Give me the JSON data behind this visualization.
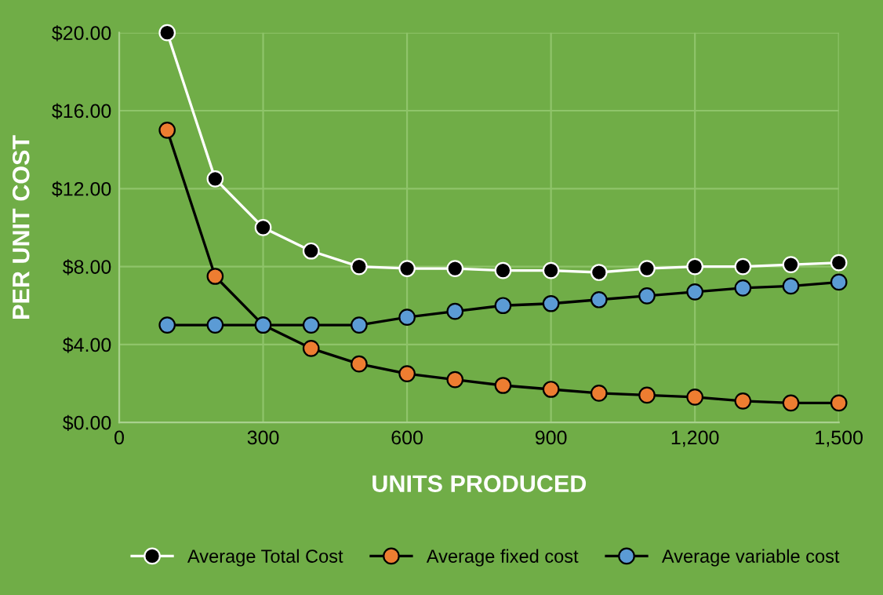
{
  "chart_data": {
    "type": "line",
    "xlabel": "UNITS PRODUCED",
    "ylabel": "PER UNIT COST",
    "x": [
      100,
      200,
      300,
      400,
      500,
      600,
      700,
      800,
      900,
      1000,
      1100,
      1200,
      1300,
      1400,
      1500
    ],
    "series": [
      {
        "name": "Average Total Cost",
        "color": "#000000",
        "values": [
          20,
          12.5,
          10,
          8.8,
          8,
          7.9,
          7.9,
          7.8,
          7.8,
          7.7,
          7.9,
          8.0,
          8.0,
          8.1,
          8.2
        ]
      },
      {
        "name": "Average fixed cost",
        "color": "#ed7d31",
        "values": [
          15,
          7.5,
          5,
          3.8,
          3,
          2.5,
          2.2,
          1.9,
          1.7,
          1.5,
          1.4,
          1.3,
          1.1,
          1.0,
          1.0
        ]
      },
      {
        "name": "Average variable cost",
        "color": "#5b9bd5",
        "values": [
          5,
          5,
          5,
          5,
          5,
          5.4,
          5.7,
          6.0,
          6.1,
          6.3,
          6.5,
          6.7,
          6.9,
          7.0,
          7.2
        ]
      }
    ],
    "xlim": [
      0,
      1500
    ],
    "xticks": [
      0,
      {
        "value": 300,
        "label": "300"
      },
      {
        "value": 600,
        "label": "600"
      },
      {
        "value": 900,
        "label": "900"
      },
      {
        "value": 1200,
        "label": "1,200"
      },
      {
        "value": 1500,
        "label": "1,500"
      }
    ],
    "ylim": [
      0,
      20
    ],
    "yticks": [
      {
        "value": 0,
        "label": "$0.00"
      },
      {
        "value": 4,
        "label": "$4.00"
      },
      {
        "value": 8,
        "label": "$8.00"
      },
      {
        "value": 12,
        "label": "$12.00"
      },
      {
        "value": 16,
        "label": "$16.00"
      },
      {
        "value": 20,
        "label": "$20.00"
      }
    ],
    "grid": true,
    "legend": "bottom",
    "marker": "circle",
    "line_style": "solid"
  }
}
